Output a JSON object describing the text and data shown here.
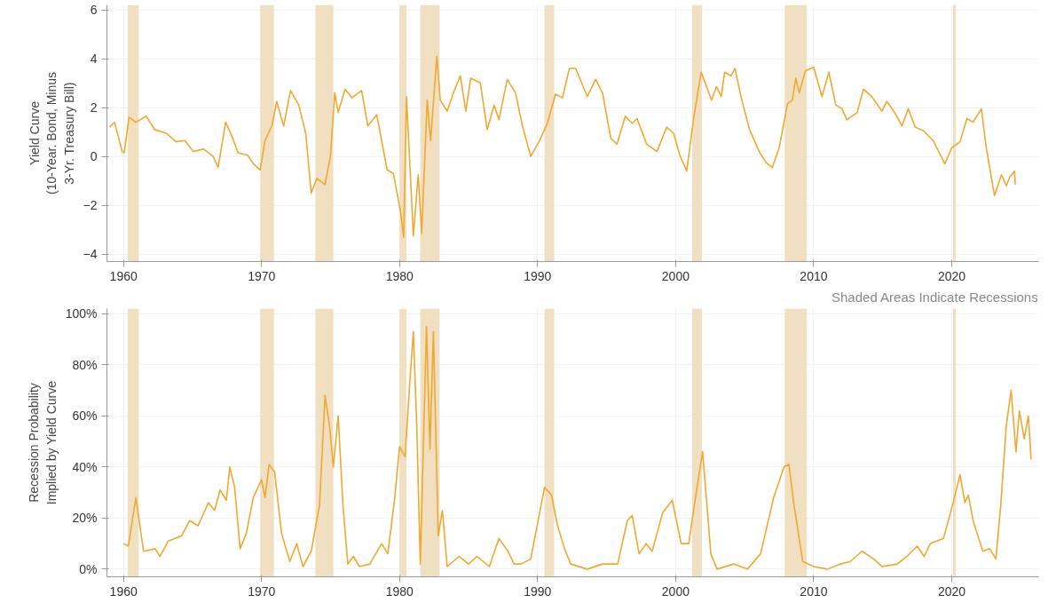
{
  "chart_data": [
    {
      "type": "line",
      "ylabel": "Yield Curve\n(10-Year. Bond, Minus\n3-Yr. Treasury Bill)",
      "xlim": [
        1958.8,
        2026.3
      ],
      "xticks": [
        1960,
        1970,
        1980,
        1990,
        2000,
        2010,
        2020
      ],
      "ylim": [
        -4.3,
        6.2
      ],
      "yticks": [
        -4,
        -2,
        0,
        2,
        4,
        6
      ],
      "grid": true,
      "bands": [
        {
          "axis": "x",
          "from": 1960.3,
          "to": 1961.1,
          "color": "#f0dfc0"
        },
        {
          "axis": "x",
          "from": 1969.9,
          "to": 1970.9,
          "color": "#f0dfc0"
        },
        {
          "axis": "x",
          "from": 1973.9,
          "to": 1975.2,
          "color": "#f0dfc0"
        },
        {
          "axis": "x",
          "from": 1980.0,
          "to": 1980.5,
          "color": "#f0dfc0"
        },
        {
          "axis": "x",
          "from": 1981.5,
          "to": 1982.9,
          "color": "#f0dfc0"
        },
        {
          "axis": "x",
          "from": 1990.5,
          "to": 1991.2,
          "color": "#f0dfc0"
        },
        {
          "axis": "x",
          "from": 2001.2,
          "to": 2001.9,
          "color": "#f0dfc0"
        },
        {
          "axis": "x",
          "from": 2007.9,
          "to": 2009.5,
          "color": "#f0dfc0"
        },
        {
          "axis": "x",
          "from": 2020.1,
          "to": 2020.3,
          "color": "#f0dfc0"
        }
      ],
      "series": [
        {
          "color": "#f0a830",
          "x": [
            1959.0,
            1959.35,
            1959.9,
            1960.05,
            1960.4,
            1960.9,
            1961.65,
            1962.25,
            1963.1,
            1963.8,
            1964.45,
            1965.05,
            1965.8,
            1966.5,
            1966.85,
            1967.4,
            1967.8,
            1968.3,
            1969.0,
            1969.4,
            1969.9,
            1970.25,
            1970.75,
            1971.1,
            1971.6,
            1972.1,
            1972.7,
            1973.2,
            1973.6,
            1974.0,
            1974.6,
            1975.0,
            1975.3,
            1975.55,
            1976.05,
            1976.55,
            1977.25,
            1977.7,
            1978.35,
            1979.1,
            1979.55,
            1980.05,
            1980.3,
            1980.5,
            1981.0,
            1981.35,
            1981.6,
            1982.0,
            1982.25,
            1982.7,
            1982.95,
            1983.45,
            1983.9,
            1984.4,
            1984.8,
            1985.15,
            1985.85,
            1986.35,
            1986.85,
            1987.2,
            1987.8,
            1988.4,
            1988.9,
            1989.5,
            1990.1,
            1990.7,
            1991.3,
            1991.8,
            1992.3,
            1992.75,
            1993.6,
            1994.2,
            1994.7,
            1995.3,
            1995.75,
            1996.35,
            1996.85,
            1997.2,
            1997.9,
            1998.65,
            1999.35,
            1999.85,
            2000.3,
            2000.8,
            2001.3,
            2001.85,
            2002.6,
            2002.95,
            2003.3,
            2003.55,
            2004.0,
            2004.3,
            2004.75,
            2005.35,
            2006.05,
            2006.55,
            2007.0,
            2007.5,
            2008.1,
            2008.45,
            2008.7,
            2008.95,
            2009.4,
            2010.0,
            2010.6,
            2011.1,
            2011.6,
            2012.05,
            2012.4,
            2013.15,
            2013.6,
            2014.2,
            2014.95,
            2015.3,
            2015.8,
            2016.4,
            2016.85,
            2017.35,
            2017.95,
            2018.65,
            2019.5,
            2020.0,
            2020.6,
            2021.1,
            2021.55,
            2022.15,
            2022.5,
            2023.1,
            2023.6,
            2023.95,
            2024.2,
            2024.55,
            2024.6
          ],
          "values": [
            1.2,
            1.4,
            0.2,
            0.15,
            1.6,
            1.4,
            1.65,
            1.1,
            0.95,
            0.6,
            0.65,
            0.2,
            0.3,
            0.0,
            -0.45,
            1.4,
            0.9,
            0.15,
            0.05,
            -0.3,
            -0.55,
            0.65,
            1.25,
            2.25,
            1.25,
            2.7,
            2.1,
            0.95,
            -1.5,
            -0.9,
            -1.15,
            0.05,
            2.6,
            1.8,
            2.75,
            2.4,
            2.7,
            1.25,
            1.7,
            -0.55,
            -0.7,
            -2.2,
            -3.3,
            2.45,
            -3.25,
            -0.75,
            -3.15,
            2.3,
            0.65,
            4.1,
            2.3,
            1.85,
            2.6,
            3.3,
            1.85,
            3.2,
            3.0,
            1.1,
            2.1,
            1.5,
            3.15,
            2.6,
            1.25,
            0.0,
            0.6,
            1.35,
            2.55,
            2.4,
            3.6,
            3.6,
            2.45,
            3.15,
            2.6,
            0.75,
            0.5,
            1.65,
            1.35,
            1.55,
            0.5,
            0.2,
            1.2,
            0.95,
            0.05,
            -0.6,
            1.55,
            3.45,
            2.3,
            2.85,
            2.45,
            3.45,
            3.3,
            3.6,
            2.4,
            1.1,
            0.2,
            -0.25,
            -0.45,
            0.35,
            2.15,
            2.3,
            3.2,
            2.6,
            3.5,
            3.65,
            2.45,
            3.45,
            2.1,
            1.95,
            1.5,
            1.8,
            2.75,
            2.45,
            1.85,
            2.25,
            1.85,
            1.25,
            1.95,
            1.2,
            1.05,
            0.65,
            -0.3,
            0.35,
            0.6,
            1.55,
            1.4,
            1.95,
            0.35,
            -1.6,
            -0.75,
            -1.2,
            -0.85,
            -0.6,
            -1.15
          ]
        }
      ]
    },
    {
      "type": "line",
      "ylabel": "Recession Probability\nImplied by Yield Curve",
      "annotations": [
        "Shaded Areas Indicate Recessions"
      ],
      "xlim": [
        1958.8,
        2026.3
      ],
      "xticks": [
        1960,
        1970,
        1980,
        1990,
        2000,
        2010,
        2020
      ],
      "ylim": [
        -3,
        102
      ],
      "yticks": [
        {
          "value": 0,
          "label": "0%"
        },
        {
          "value": 20,
          "label": "20%"
        },
        {
          "value": 40,
          "label": "40%"
        },
        {
          "value": 60,
          "label": "60%"
        },
        {
          "value": 80,
          "label": "80%"
        },
        {
          "value": 100,
          "label": "100%"
        }
      ],
      "grid": true,
      "bands": [
        {
          "axis": "x",
          "from": 1960.3,
          "to": 1961.1,
          "color": "#f0dfc0"
        },
        {
          "axis": "x",
          "from": 1969.9,
          "to": 1970.9,
          "color": "#f0dfc0"
        },
        {
          "axis": "x",
          "from": 1973.9,
          "to": 1975.2,
          "color": "#f0dfc0"
        },
        {
          "axis": "x",
          "from": 1980.0,
          "to": 1980.5,
          "color": "#f0dfc0"
        },
        {
          "axis": "x",
          "from": 1981.5,
          "to": 1982.9,
          "color": "#f0dfc0"
        },
        {
          "axis": "x",
          "from": 1990.5,
          "to": 1991.2,
          "color": "#f0dfc0"
        },
        {
          "axis": "x",
          "from": 2001.2,
          "to": 2001.9,
          "color": "#f0dfc0"
        },
        {
          "axis": "x",
          "from": 2007.9,
          "to": 2009.5,
          "color": "#f0dfc0"
        },
        {
          "axis": "x",
          "from": 2020.1,
          "to": 2020.3,
          "color": "#f0dfc0"
        }
      ],
      "series": [
        {
          "color": "#f0a830",
          "x": [
            1960.0,
            1960.35,
            1960.9,
            1961.45,
            1962.3,
            1962.65,
            1963.25,
            1964.2,
            1964.8,
            1965.4,
            1966.15,
            1966.6,
            1967.0,
            1967.45,
            1967.7,
            1968.05,
            1968.45,
            1968.9,
            1969.4,
            1970.0,
            1970.25,
            1970.55,
            1970.95,
            1971.45,
            1972.05,
            1972.55,
            1973.0,
            1973.6,
            1974.2,
            1974.6,
            1974.95,
            1975.2,
            1975.55,
            1975.9,
            1976.25,
            1976.65,
            1977.1,
            1977.85,
            1978.7,
            1979.15,
            1979.65,
            1980.0,
            1980.4,
            1980.75,
            1981.0,
            1981.25,
            1981.5,
            1981.95,
            1982.2,
            1982.45,
            1982.8,
            1983.1,
            1983.45,
            1984.3,
            1985.0,
            1985.6,
            1986.5,
            1987.2,
            1987.85,
            1988.3,
            1988.8,
            1989.5,
            1990.5,
            1991.0,
            1991.45,
            1991.95,
            1992.4,
            1993.6,
            1994.7,
            1995.8,
            1996.5,
            1996.85,
            1997.35,
            1997.85,
            1998.3,
            1999.05,
            1999.75,
            2000.4,
            2000.95,
            2001.35,
            2001.95,
            2002.55,
            2003.0,
            2004.2,
            2005.2,
            2006.15,
            2007.1,
            2007.85,
            2008.2,
            2008.55,
            2009.2,
            2010.0,
            2011.0,
            2011.95,
            2012.65,
            2013.5,
            2014.35,
            2014.95,
            2016.05,
            2016.75,
            2017.5,
            2018.0,
            2018.45,
            2019.4,
            2020.1,
            2020.6,
            2020.95,
            2021.2,
            2021.55,
            2022.25,
            2022.75,
            2023.2,
            2023.55,
            2023.95,
            2024.3,
            2024.65,
            2024.9,
            2025.25,
            2025.55,
            2025.75
          ],
          "values": [
            10,
            9,
            28,
            7,
            8,
            5,
            11,
            13,
            19,
            17,
            26,
            23,
            31,
            27,
            40,
            32,
            8,
            14,
            28,
            35,
            28,
            41,
            38,
            14,
            3,
            10,
            1,
            7,
            25,
            68,
            55,
            40,
            60,
            25,
            2,
            5,
            1,
            2,
            10,
            6,
            28,
            48,
            44,
            74,
            93,
            55,
            2,
            95,
            47,
            93,
            13,
            23,
            1,
            5,
            2,
            5,
            1,
            12,
            7,
            2,
            2,
            4,
            32,
            29,
            17,
            8,
            2,
            0,
            2,
            2,
            19,
            21,
            6,
            10,
            7,
            22,
            27,
            10,
            10,
            25,
            46,
            6,
            0,
            2,
            0,
            6,
            28,
            40,
            41,
            26,
            3,
            1,
            0,
            2,
            3,
            7,
            4,
            1,
            2,
            5,
            9,
            5,
            10,
            12,
            26,
            37,
            26,
            29,
            19,
            7,
            8,
            4,
            25,
            56,
            70,
            46,
            62,
            51,
            60,
            43
          ]
        }
      ]
    }
  ]
}
